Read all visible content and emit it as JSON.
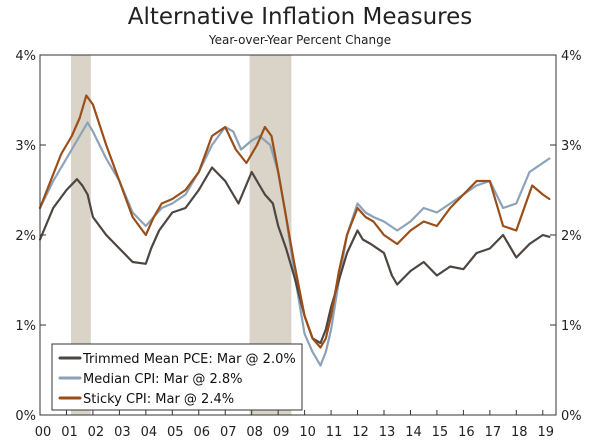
{
  "chart_data": {
    "type": "line",
    "title": "Alternative Inflation Measures",
    "subtitle": "Year-over-Year Percent Change",
    "xlabel": "",
    "ylabel": "",
    "xlim": [
      2000.0,
      2019.5
    ],
    "ylim": [
      0,
      4
    ],
    "y_ticks": [
      0,
      1,
      2,
      3,
      4
    ],
    "y_tick_labels": [
      "0%",
      "1%",
      "2%",
      "3%",
      "4%"
    ],
    "x_ticks": [
      2000,
      2001,
      2002,
      2003,
      2004,
      2005,
      2006,
      2007,
      2008,
      2009,
      2010,
      2011,
      2012,
      2013,
      2014,
      2015,
      2016,
      2017,
      2018,
      2019
    ],
    "x_tick_labels": [
      "00",
      "01",
      "02",
      "03",
      "04",
      "05",
      "06",
      "07",
      "08",
      "09",
      "10",
      "11",
      "12",
      "13",
      "14",
      "15",
      "16",
      "17",
      "18",
      "19"
    ],
    "recessions": [
      [
        2001.17,
        2001.92
      ],
      [
        2007.92,
        2009.5
      ]
    ],
    "legend_position": "bottom-left",
    "series": [
      {
        "name": "Trimmed Mean PCE: Mar @ 2.0%",
        "color": "#4d4540",
        "x": [
          2000.0,
          2000.5,
          2001.0,
          2001.4,
          2001.6,
          2001.8,
          2002.0,
          2002.5,
          2003.0,
          2003.5,
          2004.0,
          2004.2,
          2004.5,
          2005.0,
          2005.5,
          2006.0,
          2006.5,
          2007.0,
          2007.5,
          2008.0,
          2008.3,
          2008.5,
          2008.8,
          2009.0,
          2009.3,
          2009.6,
          2010.0,
          2010.3,
          2010.6,
          2010.8,
          2011.0,
          2011.3,
          2011.6,
          2012.0,
          2012.2,
          2012.5,
          2013.0,
          2013.3,
          2013.5,
          2014.0,
          2014.5,
          2015.0,
          2015.5,
          2016.0,
          2016.5,
          2017.0,
          2017.5,
          2018.0,
          2018.5,
          2019.0,
          2019.25
        ],
        "y": [
          1.95,
          2.3,
          2.5,
          2.62,
          2.55,
          2.45,
          2.2,
          2.0,
          1.85,
          1.7,
          1.68,
          1.85,
          2.05,
          2.25,
          2.3,
          2.5,
          2.75,
          2.6,
          2.35,
          2.7,
          2.55,
          2.45,
          2.35,
          2.1,
          1.85,
          1.55,
          1.1,
          0.85,
          0.8,
          0.95,
          1.2,
          1.5,
          1.8,
          2.05,
          1.95,
          1.9,
          1.8,
          1.55,
          1.45,
          1.6,
          1.7,
          1.55,
          1.65,
          1.62,
          1.8,
          1.85,
          2.0,
          1.75,
          1.9,
          2.0,
          1.98
        ]
      },
      {
        "name": "Median CPI: Mar @ 2.8%",
        "color": "#8ca2b8",
        "x": [
          2000.0,
          2000.5,
          2001.0,
          2001.4,
          2001.8,
          2002.0,
          2002.5,
          2003.0,
          2003.5,
          2004.0,
          2004.3,
          2004.6,
          2005.0,
          2005.5,
          2006.0,
          2006.5,
          2007.0,
          2007.3,
          2007.6,
          2008.0,
          2008.3,
          2008.7,
          2009.0,
          2009.3,
          2009.6,
          2010.0,
          2010.3,
          2010.6,
          2010.8,
          2011.0,
          2011.3,
          2011.6,
          2012.0,
          2012.3,
          2012.6,
          2013.0,
          2013.5,
          2014.0,
          2014.5,
          2015.0,
          2015.5,
          2016.0,
          2016.5,
          2017.0,
          2017.5,
          2018.0,
          2018.5,
          2019.0,
          2019.25
        ],
        "y": [
          2.3,
          2.6,
          2.85,
          3.05,
          3.25,
          3.15,
          2.85,
          2.6,
          2.25,
          2.1,
          2.2,
          2.3,
          2.35,
          2.45,
          2.7,
          3.0,
          3.2,
          3.15,
          2.95,
          3.05,
          3.1,
          3.0,
          2.7,
          2.2,
          1.6,
          0.9,
          0.7,
          0.55,
          0.7,
          0.95,
          1.5,
          2.0,
          2.35,
          2.25,
          2.2,
          2.15,
          2.05,
          2.15,
          2.3,
          2.25,
          2.35,
          2.45,
          2.55,
          2.6,
          2.3,
          2.35,
          2.7,
          2.8,
          2.85
        ]
      },
      {
        "name": "Sticky CPI: Mar @ 2.4%",
        "color": "#9a4e19",
        "x": [
          2000.0,
          2000.4,
          2000.8,
          2001.2,
          2001.5,
          2001.75,
          2002.0,
          2002.5,
          2003.0,
          2003.5,
          2004.0,
          2004.3,
          2004.6,
          2005.0,
          2005.5,
          2006.0,
          2006.5,
          2007.0,
          2007.4,
          2007.8,
          2008.2,
          2008.5,
          2008.75,
          2009.0,
          2009.3,
          2009.6,
          2010.0,
          2010.3,
          2010.6,
          2010.8,
          2011.0,
          2011.3,
          2011.6,
          2012.0,
          2012.3,
          2012.6,
          2013.0,
          2013.5,
          2014.0,
          2014.5,
          2015.0,
          2015.5,
          2016.0,
          2016.5,
          2017.0,
          2017.5,
          2018.0,
          2018.3,
          2018.6,
          2019.0,
          2019.25
        ],
        "y": [
          2.3,
          2.6,
          2.9,
          3.1,
          3.3,
          3.55,
          3.45,
          3.0,
          2.6,
          2.2,
          2.0,
          2.2,
          2.35,
          2.4,
          2.5,
          2.7,
          3.1,
          3.2,
          2.95,
          2.8,
          3.0,
          3.2,
          3.1,
          2.7,
          2.2,
          1.7,
          1.1,
          0.85,
          0.75,
          0.85,
          1.1,
          1.6,
          2.0,
          2.3,
          2.2,
          2.15,
          2.0,
          1.9,
          2.05,
          2.15,
          2.1,
          2.3,
          2.45,
          2.6,
          2.6,
          2.1,
          2.05,
          2.3,
          2.55,
          2.45,
          2.4
        ]
      }
    ]
  }
}
